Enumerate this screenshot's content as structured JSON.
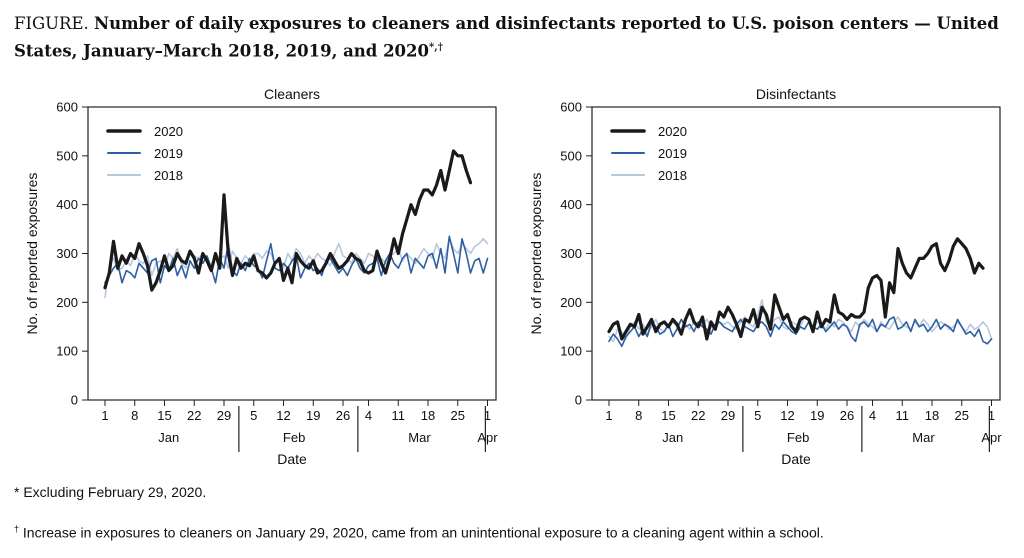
{
  "title": {
    "label": "FIGURE.",
    "text": "Number of daily exposures to cleaners and disinfectants reported to U.S. poison centers — United States, January–March 2018, 2019, and 2020",
    "marks": "*,†"
  },
  "footnotes": [
    {
      "mark": "*",
      "text": " Excluding February 29, 2020."
    },
    {
      "mark": "†",
      "text": " Increase in exposures to cleaners on January 29, 2020, came from an unintentional exposure to a cleaning agent within a school."
    }
  ],
  "series_style": [
    {
      "name": "2020",
      "color": "#1a1a1a",
      "width": 3.2
    },
    {
      "name": "2019",
      "color": "#2e5fa3",
      "width": 1.6
    },
    {
      "name": "2018",
      "color": "#b8c7e0",
      "width": 1.6
    }
  ],
  "chart_data": [
    {
      "type": "line",
      "title": "Cleaners",
      "xlabel": "Date",
      "ylabel": "No. of reported exposures",
      "ylim": [
        0,
        600
      ],
      "yticks": [
        0,
        100,
        200,
        300,
        400,
        500,
        600
      ],
      "xlim": [
        1,
        91
      ],
      "xticks": [
        {
          "day": 1,
          "label": "1"
        },
        {
          "day": 8,
          "label": "8"
        },
        {
          "day": 15,
          "label": "15"
        },
        {
          "day": 22,
          "label": "22"
        },
        {
          "day": 29,
          "label": "29"
        },
        {
          "day": 36,
          "label": "5"
        },
        {
          "day": 43,
          "label": "12"
        },
        {
          "day": 50,
          "label": "19"
        },
        {
          "day": 57,
          "label": "26"
        },
        {
          "day": 63,
          "label": "4"
        },
        {
          "day": 70,
          "label": "11"
        },
        {
          "day": 77,
          "label": "18"
        },
        {
          "day": 84,
          "label": "25"
        },
        {
          "day": 91,
          "label": "1"
        }
      ],
      "months": [
        {
          "label": "Jan",
          "center": 16
        },
        {
          "label": "Feb",
          "center": 45.5
        },
        {
          "label": "Mar",
          "center": 75
        },
        {
          "label": "Apr",
          "center": 91
        }
      ],
      "month_boundaries": [
        32.5,
        60.5,
        90.5
      ],
      "legend_position": "top-left",
      "series": [
        {
          "name": "2020",
          "start_day": 1,
          "values": [
            230,
            260,
            325,
            270,
            295,
            280,
            300,
            290,
            320,
            300,
            275,
            225,
            240,
            265,
            295,
            265,
            275,
            300,
            285,
            280,
            305,
            290,
            260,
            300,
            285,
            265,
            300,
            270,
            420,
            300,
            255,
            290,
            270,
            280,
            275,
            295,
            265,
            260,
            250,
            260,
            280,
            290,
            245,
            270,
            240,
            300,
            285,
            275,
            270,
            285,
            260,
            265,
            280,
            300,
            285,
            270,
            275,
            285,
            300,
            290,
            285,
            265,
            260,
            265,
            305,
            280,
            260,
            290,
            330,
            300,
            340,
            370,
            400,
            380,
            410,
            430,
            430,
            420,
            440,
            470,
            430,
            470,
            510,
            500,
            500,
            470,
            445
          ]
        },
        {
          "name": "2019",
          "start_day": 1,
          "values": [
            240,
            255,
            270,
            280,
            240,
            265,
            260,
            250,
            280,
            270,
            260,
            285,
            290,
            240,
            275,
            265,
            290,
            255,
            275,
            250,
            285,
            270,
            290,
            280,
            295,
            270,
            240,
            290,
            270,
            320,
            265,
            255,
            280,
            265,
            290,
            275,
            270,
            250,
            285,
            320,
            270,
            265,
            280,
            270,
            285,
            295,
            250,
            270,
            280,
            265,
            270,
            255,
            285,
            290,
            275,
            260,
            270,
            255,
            275,
            290,
            270,
            260,
            275,
            280,
            290,
            255,
            285,
            300,
            280,
            270,
            290,
            300,
            260,
            290,
            280,
            270,
            295,
            300,
            270,
            310,
            260,
            335,
            300,
            260,
            330,
            300,
            260,
            285,
            290,
            260,
            290
          ]
        },
        {
          "name": "2018",
          "start_day": 1,
          "values": [
            210,
            275,
            290,
            265,
            270,
            285,
            275,
            300,
            285,
            280,
            295,
            255,
            280,
            285,
            270,
            300,
            290,
            310,
            280,
            270,
            305,
            295,
            290,
            300,
            285,
            275,
            300,
            290,
            295,
            270,
            305,
            290,
            280,
            295,
            285,
            300,
            300,
            290,
            305,
            300,
            280,
            290,
            270,
            300,
            285,
            310,
            300,
            280,
            295,
            285,
            300,
            290,
            285,
            275,
            300,
            320,
            295,
            290,
            280,
            300,
            290,
            280,
            300,
            295,
            285,
            290,
            280,
            295,
            300,
            310,
            285,
            300,
            290,
            280,
            295,
            310,
            300,
            290,
            320,
            300,
            290,
            330,
            310,
            300,
            320,
            310,
            300,
            315,
            320,
            330,
            320
          ]
        }
      ]
    },
    {
      "type": "line",
      "title": "Disinfectants",
      "xlabel": "Date",
      "ylabel": "No. of reported exposures",
      "ylim": [
        0,
        600
      ],
      "yticks": [
        0,
        100,
        200,
        300,
        400,
        500,
        600
      ],
      "xlim": [
        1,
        91
      ],
      "xticks": [
        {
          "day": 1,
          "label": "1"
        },
        {
          "day": 8,
          "label": "8"
        },
        {
          "day": 15,
          "label": "15"
        },
        {
          "day": 22,
          "label": "22"
        },
        {
          "day": 29,
          "label": "29"
        },
        {
          "day": 36,
          "label": "5"
        },
        {
          "day": 43,
          "label": "12"
        },
        {
          "day": 50,
          "label": "19"
        },
        {
          "day": 57,
          "label": "26"
        },
        {
          "day": 63,
          "label": "4"
        },
        {
          "day": 70,
          "label": "11"
        },
        {
          "day": 77,
          "label": "18"
        },
        {
          "day": 84,
          "label": "25"
        },
        {
          "day": 91,
          "label": "1"
        }
      ],
      "months": [
        {
          "label": "Jan",
          "center": 16
        },
        {
          "label": "Feb",
          "center": 45.5
        },
        {
          "label": "Mar",
          "center": 75
        },
        {
          "label": "Apr",
          "center": 91
        }
      ],
      "month_boundaries": [
        32.5,
        60.5,
        90.5
      ],
      "legend_position": "top-left",
      "series": [
        {
          "name": "2020",
          "start_day": 1,
          "values": [
            140,
            155,
            160,
            125,
            140,
            155,
            150,
            175,
            135,
            150,
            165,
            140,
            155,
            160,
            150,
            165,
            155,
            135,
            165,
            185,
            160,
            150,
            170,
            125,
            160,
            145,
            180,
            170,
            190,
            175,
            155,
            130,
            165,
            160,
            185,
            150,
            190,
            175,
            145,
            215,
            190,
            165,
            175,
            150,
            140,
            165,
            170,
            165,
            140,
            180,
            150,
            165,
            160,
            215,
            180,
            175,
            165,
            175,
            170,
            170,
            180,
            230,
            250,
            255,
            245,
            170,
            240,
            220,
            310,
            280,
            260,
            250,
            270,
            290,
            290,
            300,
            315,
            320,
            280,
            265,
            285,
            315,
            330,
            320,
            310,
            290,
            260,
            280,
            270
          ]
        },
        {
          "name": "2019",
          "start_day": 1,
          "values": [
            120,
            135,
            125,
            110,
            130,
            140,
            150,
            130,
            145,
            130,
            160,
            150,
            135,
            140,
            155,
            130,
            145,
            165,
            150,
            155,
            140,
            160,
            150,
            145,
            135,
            155,
            160,
            150,
            145,
            140,
            155,
            165,
            150,
            145,
            140,
            155,
            160,
            150,
            130,
            155,
            145,
            160,
            150,
            140,
            135,
            150,
            145,
            160,
            150,
            145,
            155,
            140,
            150,
            160,
            145,
            155,
            150,
            130,
            120,
            155,
            160,
            150,
            165,
            140,
            155,
            150,
            165,
            170,
            145,
            150,
            160,
            140,
            165,
            150,
            155,
            140,
            150,
            165,
            145,
            155,
            150,
            140,
            165,
            150,
            135,
            140,
            130,
            145,
            120,
            115,
            125
          ]
        },
        {
          "name": "2018",
          "start_day": 1,
          "values": [
            130,
            120,
            145,
            140,
            125,
            150,
            160,
            145,
            155,
            135,
            150,
            165,
            145,
            140,
            155,
            160,
            150,
            165,
            155,
            145,
            160,
            150,
            155,
            165,
            150,
            145,
            160,
            155,
            160,
            150,
            145,
            160,
            170,
            155,
            150,
            175,
            205,
            160,
            150,
            165,
            170,
            150,
            145,
            160,
            155,
            150,
            170,
            165,
            150,
            160,
            155,
            145,
            160,
            150,
            165,
            160,
            150,
            140,
            160,
            150,
            165,
            155,
            150,
            140,
            160,
            150,
            145,
            160,
            170,
            155,
            150,
            145,
            160,
            150,
            165,
            155,
            140,
            150,
            160,
            155,
            145,
            150,
            160,
            150,
            140,
            155,
            145,
            150,
            160,
            150,
            125
          ]
        }
      ]
    }
  ]
}
